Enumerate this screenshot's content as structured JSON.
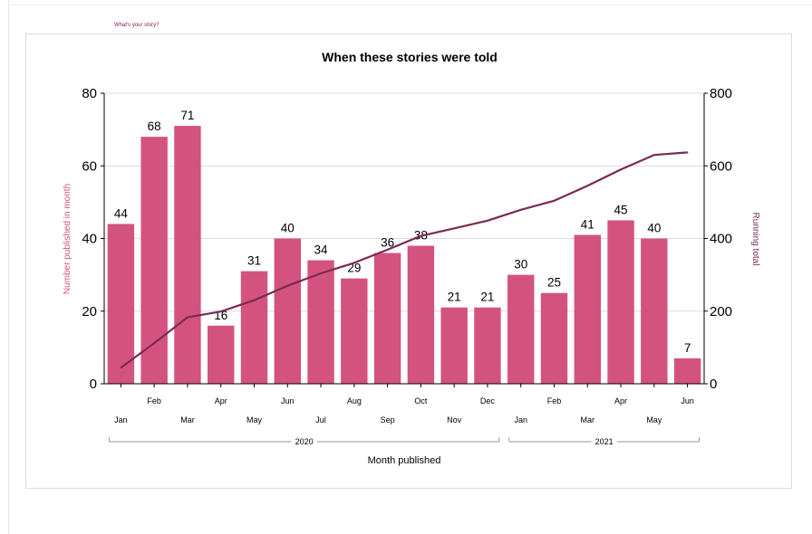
{
  "header": {
    "link_label": "What's your story?"
  },
  "colors": {
    "bar": "#d4537e",
    "line": "#7a2a55",
    "grid": "#dcdcdc",
    "axis": "#000000"
  },
  "chart_data": {
    "type": "bar",
    "title": "When these stories were told",
    "xlabel": "Month published",
    "ylabel": "Number published in month",
    "y2label": "Running total",
    "ylim": [
      0,
      80
    ],
    "y2lim": [
      0,
      800
    ],
    "yticks": [
      0,
      20,
      40,
      60,
      80
    ],
    "y2ticks": [
      0,
      200,
      400,
      600,
      800
    ],
    "grid": true,
    "categories": [
      "Jan",
      "Feb",
      "Mar",
      "Apr",
      "May",
      "Jun",
      "Jul",
      "Aug",
      "Sep",
      "Oct",
      "Nov",
      "Dec",
      "Jan",
      "Feb",
      "Mar",
      "Apr",
      "May",
      "Jun"
    ],
    "years": [
      {
        "label": "2020",
        "start": 0,
        "end": 11
      },
      {
        "label": "2021",
        "start": 12,
        "end": 17
      }
    ],
    "series": [
      {
        "name": "Number published in month",
        "type": "bar",
        "axis": "left",
        "values": [
          44,
          68,
          71,
          16,
          31,
          40,
          34,
          29,
          36,
          38,
          21,
          21,
          30,
          25,
          41,
          45,
          40,
          7
        ]
      },
      {
        "name": "Running total",
        "type": "line",
        "axis": "right",
        "values": [
          44,
          112,
          183,
          199,
          230,
          270,
          304,
          333,
          369,
          407,
          428,
          449,
          479,
          504,
          545,
          590,
          630,
          637
        ]
      }
    ]
  }
}
